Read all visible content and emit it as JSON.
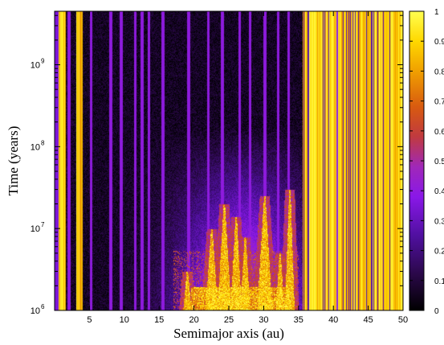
{
  "chart_data": {
    "type": "heatmap",
    "title": "",
    "xlabel": "Semimajor axis (au)",
    "ylabel": "Time (years)",
    "xlim": [
      0,
      50
    ],
    "ylim": [
      1000000,
      4500000000
    ],
    "yscale": "log",
    "x_ticks": [
      5,
      10,
      15,
      20,
      25,
      30,
      35,
      40,
      45,
      50
    ],
    "y_ticks": [
      {
        "value": 1000000,
        "base": "10",
        "exp": "6"
      },
      {
        "value": 10000000,
        "base": "10",
        "exp": "7"
      },
      {
        "value": 100000000,
        "base": "10",
        "exp": "8"
      },
      {
        "value": 1000000000,
        "base": "10",
        "exp": "9"
      }
    ],
    "colorbar": {
      "min": 0,
      "max": 1,
      "ticks": [
        "0",
        "0.1",
        "0.2",
        "0.3",
        "0.4",
        "0.5",
        "0.6",
        "0.7",
        "0.8",
        "0.9",
        "1"
      ],
      "palette": [
        "#000000",
        "#3a0a6e",
        "#7a10d8",
        "#a030c0",
        "#c0403a",
        "#e07010",
        "#f0b000",
        "#ffe000",
        "#ffff60"
      ]
    },
    "bright_zones_au": [
      [
        0.5,
        1.5
      ],
      [
        3.0,
        4.0
      ],
      [
        35.5,
        50.0
      ]
    ],
    "vertical_lines_au": [
      2.0,
      5.2,
      8.0,
      9.5,
      11.5,
      12.5,
      13.5,
      15.5,
      19.2,
      22.0,
      24.0,
      26.5,
      28.0,
      30.1,
      32.0,
      33.5,
      37.2,
      39.0,
      40.5,
      44.3,
      47.8
    ],
    "peaks": [
      {
        "x": 19.0,
        "top": 3000000,
        "width": 0.5
      },
      {
        "x": 22.5,
        "top": 10000000,
        "width": 0.8
      },
      {
        "x": 24.3,
        "top": 20000000,
        "width": 0.9
      },
      {
        "x": 26.0,
        "top": 14000000,
        "width": 0.7
      },
      {
        "x": 27.3,
        "top": 8000000,
        "width": 0.6
      },
      {
        "x": 30.1,
        "top": 25000000,
        "width": 1.0
      },
      {
        "x": 32.3,
        "top": 5000000,
        "width": 0.5
      },
      {
        "x": 33.7,
        "top": 30000000,
        "width": 0.6
      }
    ]
  }
}
